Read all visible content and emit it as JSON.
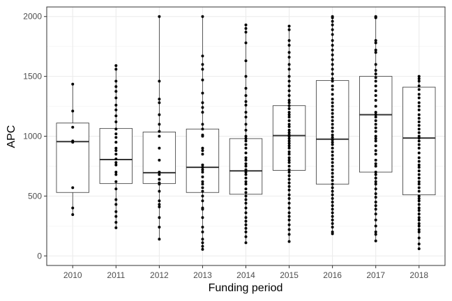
{
  "chart_data": {
    "type": "box",
    "title": "",
    "xlabel": "Funding period",
    "ylabel": "APC",
    "ylim": [
      -80,
      2080
    ],
    "yticks": [
      0,
      500,
      1000,
      1500,
      2000
    ],
    "grid": true,
    "categories": [
      "2010",
      "2011",
      "2012",
      "2013",
      "2014",
      "2015",
      "2016",
      "2017",
      "2018"
    ],
    "boxes": [
      {
        "category": "2010",
        "q1": 530,
        "median": 955,
        "q3": 1110,
        "whisker_low": 345,
        "whisker_high": 1435
      },
      {
        "category": "2011",
        "q1": 605,
        "median": 805,
        "q3": 1065,
        "whisker_low": 235,
        "whisker_high": 1590
      },
      {
        "category": "2012",
        "q1": 605,
        "median": 695,
        "q3": 1035,
        "whisker_low": 140,
        "whisker_high": 2000
      },
      {
        "category": "2013",
        "q1": 530,
        "median": 740,
        "q3": 1060,
        "whisker_low": 55,
        "whisker_high": 2000
      },
      {
        "category": "2014",
        "q1": 515,
        "median": 710,
        "q3": 980,
        "whisker_low": 110,
        "whisker_high": 1930
      },
      {
        "category": "2015",
        "q1": 715,
        "median": 1005,
        "q3": 1255,
        "whisker_low": 120,
        "whisker_high": 1920
      },
      {
        "category": "2016",
        "q1": 600,
        "median": 975,
        "q3": 1465,
        "whisker_low": 185,
        "whisker_high": 2000
      },
      {
        "category": "2017",
        "q1": 700,
        "median": 1180,
        "q3": 1500,
        "whisker_low": 125,
        "whisker_high": 2000
      },
      {
        "category": "2018",
        "q1": 510,
        "median": 985,
        "q3": 1410,
        "whisker_low": 60,
        "whisker_high": 1500
      }
    ],
    "points": [
      {
        "category": "2010",
        "values": [
          1435,
          1210,
          1075,
          960,
          950,
          570,
          400,
          345
        ]
      },
      {
        "category": "2011",
        "values": [
          1590,
          1560,
          1460,
          1415,
          1375,
          1320,
          1260,
          1220,
          1170,
          1120,
          1060,
          1020,
          990,
          950,
          900,
          880,
          850,
          810,
          780,
          760,
          700,
          680,
          620,
          560,
          470,
          430,
          370,
          330,
          280,
          235
        ]
      },
      {
        "category": "2012",
        "values": [
          2000,
          1460,
          1310,
          1280,
          1180,
          1100,
          1040,
          1000,
          900,
          800,
          700,
          680,
          640,
          610,
          600,
          540,
          460,
          430,
          410,
          320,
          240,
          140
        ]
      },
      {
        "category": "2013",
        "values": [
          2000,
          1670,
          1600,
          1560,
          1470,
          1360,
          1280,
          1240,
          1200,
          1100,
          1060,
          1010,
          1000,
          900,
          880,
          850,
          760,
          740,
          720,
          700,
          660,
          620,
          600,
          570,
          540,
          500,
          460,
          400,
          390,
          320,
          240,
          200,
          140,
          110,
          80,
          55
        ]
      },
      {
        "category": "2014",
        "values": [
          1930,
          1900,
          1870,
          1780,
          1630,
          1500,
          1400,
          1340,
          1290,
          1260,
          1200,
          1160,
          1100,
          1050,
          1000,
          980,
          960,
          930,
          900,
          860,
          820,
          800,
          770,
          750,
          720,
          700,
          680,
          650,
          620,
          600,
          560,
          530,
          500,
          470,
          440,
          400,
          360,
          320,
          290,
          260,
          230,
          200,
          160,
          110
        ]
      },
      {
        "category": "2015",
        "values": [
          1920,
          1890,
          1800,
          1760,
          1700,
          1660,
          1600,
          1560,
          1500,
          1460,
          1420,
          1380,
          1340,
          1300,
          1280,
          1255,
          1230,
          1200,
          1180,
          1160,
          1130,
          1100,
          1080,
          1050,
          1030,
          1010,
          1000,
          980,
          960,
          940,
          920,
          900,
          870,
          850,
          820,
          800,
          780,
          750,
          720,
          700,
          670,
          640,
          610,
          580,
          550,
          510,
          480,
          440,
          400,
          360,
          330,
          300,
          260,
          220,
          180,
          120
        ]
      },
      {
        "category": "2016",
        "values": [
          2000,
          1990,
          1960,
          1930,
          1890,
          1850,
          1800,
          1760,
          1720,
          1680,
          1640,
          1600,
          1560,
          1520,
          1480,
          1460,
          1420,
          1390,
          1350,
          1310,
          1280,
          1250,
          1220,
          1190,
          1160,
          1130,
          1100,
          1070,
          1040,
          1010,
          990,
          970,
          950,
          930,
          900,
          870,
          840,
          810,
          780,
          750,
          720,
          690,
          660,
          630,
          600,
          570,
          540,
          510,
          480,
          450,
          420,
          390,
          360,
          330,
          300,
          270,
          240,
          200,
          185
        ]
      },
      {
        "category": "2017",
        "values": [
          2000,
          1995,
          1990,
          1800,
          1780,
          1720,
          1700,
          1600,
          1550,
          1520,
          1490,
          1460,
          1420,
          1380,
          1340,
          1300,
          1250,
          1200,
          1180,
          1160,
          1130,
          1100,
          1070,
          1040,
          1000,
          980,
          960,
          920,
          880,
          850,
          800,
          770,
          750,
          700,
          680,
          650,
          620,
          600,
          560,
          520,
          490,
          450,
          420,
          390,
          350,
          300,
          250,
          200,
          180,
          125
        ]
      },
      {
        "category": "2018",
        "values": [
          1500,
          1480,
          1460,
          1420,
          1390,
          1350,
          1320,
          1280,
          1250,
          1220,
          1180,
          1150,
          1120,
          1090,
          1060,
          1030,
          1000,
          985,
          960,
          930,
          900,
          860,
          820,
          790,
          760,
          740,
          710,
          680,
          650,
          620,
          600,
          570,
          540,
          500,
          480,
          460,
          430,
          400,
          380,
          350,
          320,
          300,
          270,
          250,
          220,
          200,
          150,
          100,
          60
        ]
      }
    ]
  }
}
